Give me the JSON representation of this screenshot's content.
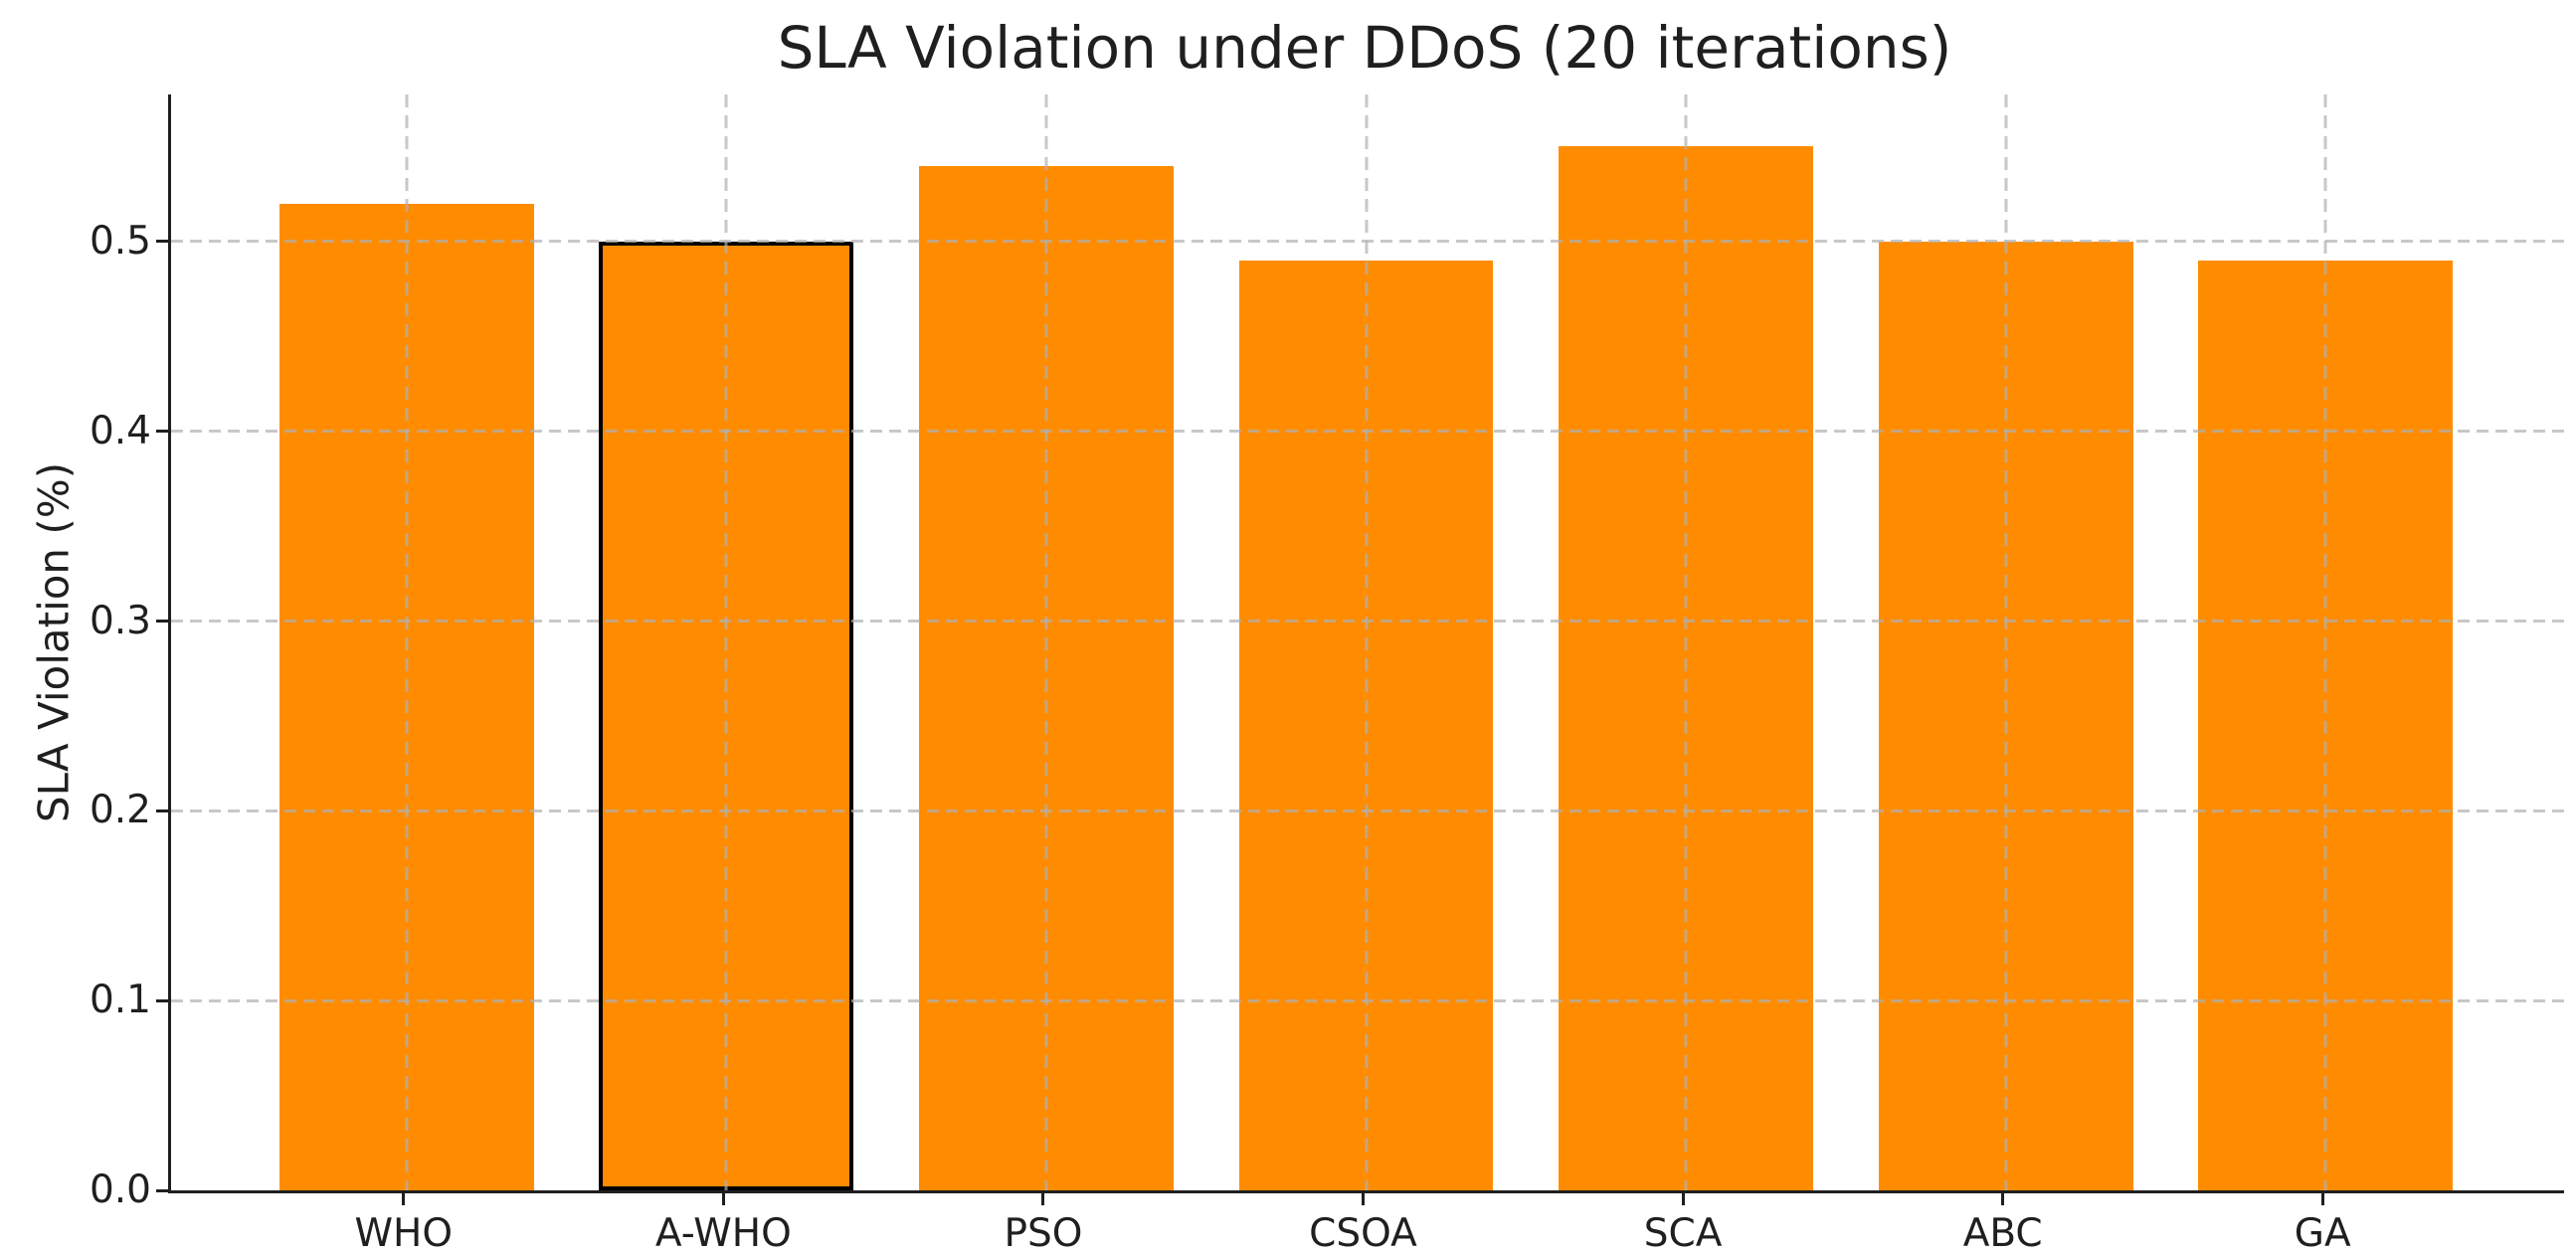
{
  "chart_data": {
    "type": "bar",
    "title": "SLA Violation under DDoS (20 iterations)",
    "xlabel": "",
    "ylabel": "SLA Violation (%)",
    "categories": [
      "WHO",
      "A-WHO",
      "PSO",
      "CSOA",
      "SCA",
      "ABC",
      "GA"
    ],
    "values": [
      0.52,
      0.5,
      0.54,
      0.49,
      0.55,
      0.5,
      0.49
    ],
    "highlighted_category": "A-WHO",
    "ylim": [
      0,
      0.5775
    ],
    "ytick_labels": [
      "0.0",
      "0.1",
      "0.2",
      "0.3",
      "0.4",
      "0.5"
    ],
    "grid": "dashed, both axes, drawn over bars",
    "legend": "none",
    "colors": {
      "bar_fill": "#ff8c00",
      "highlight_edge": "#000000",
      "grid_line": "rgba(176,176,176,0.7)",
      "spine": "#1f1f1f",
      "text": "#1f1f1f",
      "background": "#ffffff"
    }
  }
}
